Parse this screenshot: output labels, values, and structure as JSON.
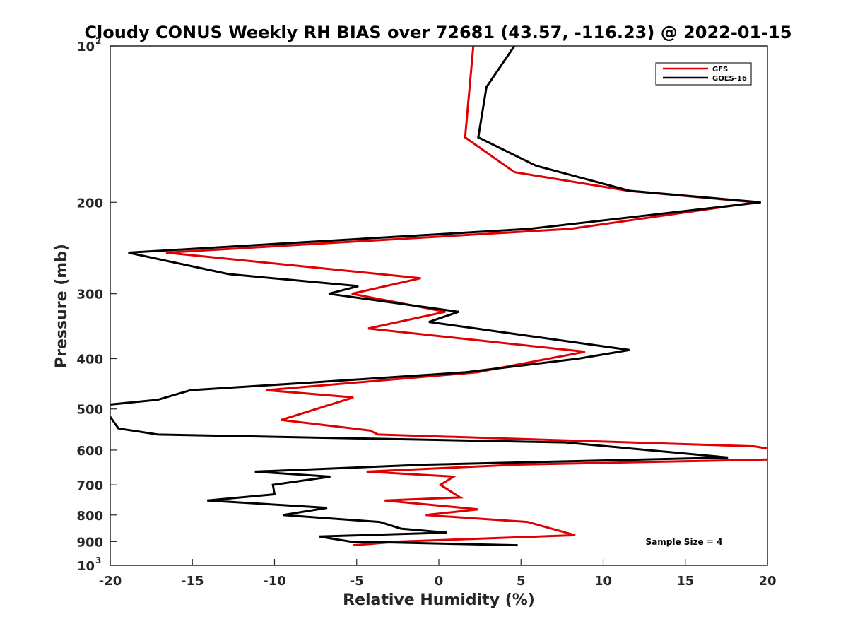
{
  "chart_data": {
    "type": "line",
    "title": "Cloudy CONUS Weekly RH BIAS over 72681 (43.57, -116.23) @ 2022-01-15",
    "xlabel": "Relative Humidity (%)",
    "ylabel": "Pressure (mb)",
    "xlim": [
      -20,
      20
    ],
    "ylim": [
      100,
      1000
    ],
    "y_scale": "log",
    "y_reversed": true,
    "grid": false,
    "legend_position": "top-right",
    "x_ticks": [
      "-20",
      "-15",
      "-10",
      "-5",
      "0",
      "5",
      "10",
      "15",
      "20"
    ],
    "y_ticks": [
      {
        "value": 100,
        "base": "10",
        "exp": "2"
      },
      {
        "value": 200,
        "label": "200"
      },
      {
        "value": 300,
        "label": "300"
      },
      {
        "value": 400,
        "label": "400"
      },
      {
        "value": 500,
        "label": "500"
      },
      {
        "value": 600,
        "label": "600"
      },
      {
        "value": 700,
        "label": "700"
      },
      {
        "value": 800,
        "label": "800"
      },
      {
        "value": 900,
        "label": "900"
      },
      {
        "value": 1000,
        "base": "10",
        "exp": "3"
      }
    ],
    "series": [
      {
        "name": "GFS",
        "color": "#e00000",
        "points": [
          [
            2.1,
            100
          ],
          [
            1.6,
            150
          ],
          [
            4.6,
            175
          ],
          [
            11.5,
            190
          ],
          [
            19.3,
            200
          ],
          [
            8.0,
            225
          ],
          [
            -16.6,
            250
          ],
          [
            -1.1,
            280
          ],
          [
            -5.3,
            300
          ],
          [
            0.4,
            325
          ],
          [
            -4.3,
            350
          ],
          [
            8.9,
            388
          ],
          [
            2.3,
            425
          ],
          [
            -10.5,
            460
          ],
          [
            -5.2,
            475
          ],
          [
            -9.6,
            525
          ],
          [
            -4.2,
            550
          ],
          [
            -3.7,
            560
          ],
          [
            19.2,
            590
          ],
          [
            20.6,
            600
          ],
          [
            20.6,
            625
          ],
          [
            4.8,
            640
          ],
          [
            -4.4,
            660
          ],
          [
            0.9,
            675
          ],
          [
            0.1,
            700
          ],
          [
            1.3,
            740
          ],
          [
            -3.3,
            750
          ],
          [
            2.4,
            780
          ],
          [
            -0.8,
            800
          ],
          [
            5.4,
            825
          ],
          [
            8.3,
            875
          ],
          [
            -2.4,
            900
          ],
          [
            -5.2,
            915
          ]
        ]
      },
      {
        "name": "GOES-16",
        "color": "#000000",
        "points": [
          [
            4.6,
            100
          ],
          [
            2.9,
            120
          ],
          [
            2.4,
            150
          ],
          [
            5.9,
            170
          ],
          [
            11.6,
            190
          ],
          [
            19.6,
            200
          ],
          [
            5.5,
            225
          ],
          [
            -18.9,
            250
          ],
          [
            -12.8,
            275
          ],
          [
            -4.9,
            290
          ],
          [
            -6.7,
            300
          ],
          [
            1.2,
            325
          ],
          [
            -0.6,
            340
          ],
          [
            11.6,
            385
          ],
          [
            8.5,
            400
          ],
          [
            1.6,
            425
          ],
          [
            -7.9,
            445
          ],
          [
            -15.1,
            460
          ],
          [
            -17.1,
            480
          ],
          [
            -20.5,
            492
          ],
          [
            -19.5,
            545
          ],
          [
            -17.1,
            560
          ],
          [
            7.7,
            580
          ],
          [
            17.6,
            620
          ],
          [
            -0.8,
            640
          ],
          [
            -11.2,
            660
          ],
          [
            -6.6,
            675
          ],
          [
            -10.1,
            700
          ],
          [
            -10.0,
            730
          ],
          [
            -14.1,
            750
          ],
          [
            -6.8,
            775
          ],
          [
            -9.5,
            800
          ],
          [
            -3.6,
            825
          ],
          [
            -2.3,
            850
          ],
          [
            0.5,
            865
          ],
          [
            -7.3,
            880
          ],
          [
            -5.4,
            900
          ],
          [
            4.8,
            915
          ]
        ]
      }
    ],
    "annotation": "Sample Size = 4"
  }
}
